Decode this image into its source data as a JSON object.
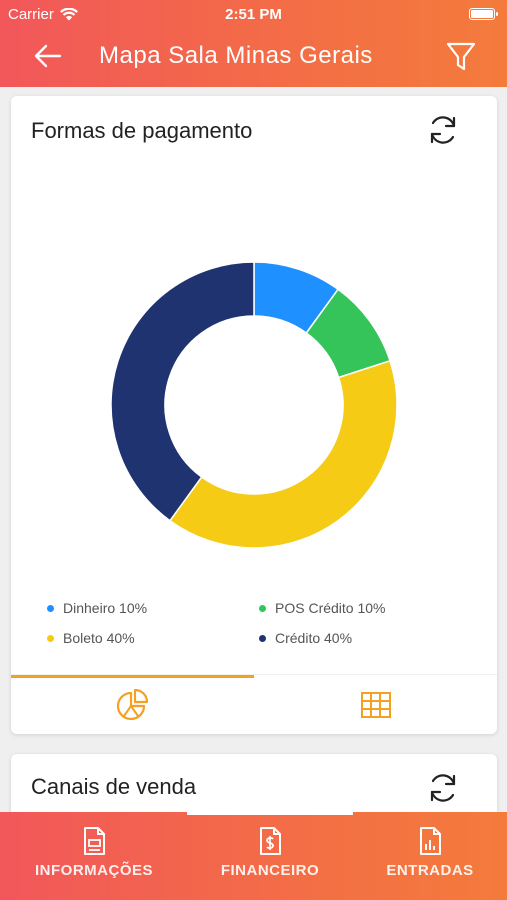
{
  "status_bar": {
    "carrier": "Carrier",
    "time": "2:51 PM",
    "battery_level": 1.0
  },
  "header": {
    "title": "Mapa Sala Minas Gerais",
    "icons": {
      "back": "arrow-left-icon",
      "filter": "filter-icon"
    }
  },
  "payment_card": {
    "title": "Formas de pagamento",
    "refresh_icon": "refresh-icon",
    "legend": [
      {
        "label": "Dinheiro 10%",
        "color": "#1e90ff"
      },
      {
        "label": "POS Crédito 10%",
        "color": "#34c45a"
      },
      {
        "label": "Boleto 40%",
        "color": "#f5cb15"
      },
      {
        "label": "Crédito 40%",
        "color": "#1f3370"
      }
    ],
    "tabs": [
      {
        "icon": "pie-chart-icon",
        "active": true
      },
      {
        "icon": "table-icon",
        "active": false
      }
    ]
  },
  "chart_data": {
    "type": "pie",
    "title": "Formas de pagamento",
    "categories": [
      "Dinheiro",
      "POS Crédito",
      "Boleto",
      "Crédito"
    ],
    "values": [
      10,
      10,
      40,
      40
    ],
    "colors": [
      "#1e90ff",
      "#34c45a",
      "#f5cb15",
      "#1f3370"
    ],
    "legend": "bottom",
    "donut": true
  },
  "sales_card": {
    "title": "Canais de venda",
    "refresh_icon": "refresh-icon"
  },
  "bottom_nav": {
    "items": [
      {
        "label": "INFORMAÇÕES",
        "icon": "document-icon",
        "active": false
      },
      {
        "label": "FINANCEIRO",
        "icon": "invoice-dollar-icon",
        "active": true
      },
      {
        "label": "ENTRADAS",
        "icon": "report-chart-icon",
        "active": false
      }
    ]
  }
}
